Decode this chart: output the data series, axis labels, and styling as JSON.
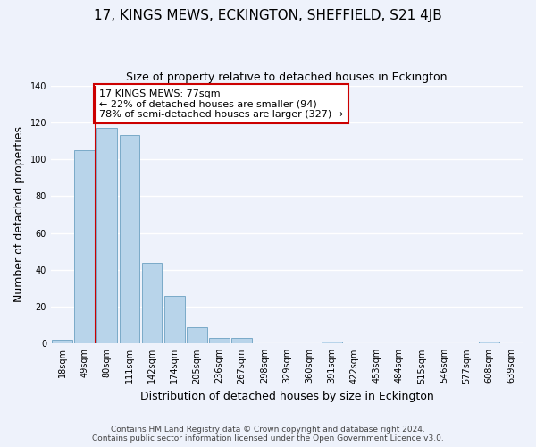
{
  "title": "17, KINGS MEWS, ECKINGTON, SHEFFIELD, S21 4JB",
  "subtitle": "Size of property relative to detached houses in Eckington",
  "xlabel": "Distribution of detached houses by size in Eckington",
  "ylabel": "Number of detached properties",
  "bar_labels": [
    "18sqm",
    "49sqm",
    "80sqm",
    "111sqm",
    "142sqm",
    "174sqm",
    "205sqm",
    "236sqm",
    "267sqm",
    "298sqm",
    "329sqm",
    "360sqm",
    "391sqm",
    "422sqm",
    "453sqm",
    "484sqm",
    "515sqm",
    "546sqm",
    "577sqm",
    "608sqm",
    "639sqm"
  ],
  "bar_values": [
    2,
    105,
    117,
    113,
    44,
    26,
    9,
    3,
    3,
    0,
    0,
    0,
    1,
    0,
    0,
    0,
    0,
    0,
    0,
    1,
    0
  ],
  "bar_color": "#b8d4ea",
  "bar_edge_color": "#7aaac8",
  "vline_color": "#cc0000",
  "annotation_text": "17 KINGS MEWS: 77sqm\n← 22% of detached houses are smaller (94)\n78% of semi-detached houses are larger (327) →",
  "annotation_box_color": "#ffffff",
  "annotation_box_edge_color": "#cc0000",
  "ylim": [
    0,
    140
  ],
  "yticks": [
    0,
    20,
    40,
    60,
    80,
    100,
    120,
    140
  ],
  "footer_line1": "Contains HM Land Registry data © Crown copyright and database right 2024.",
  "footer_line2": "Contains public sector information licensed under the Open Government Licence v3.0.",
  "bg_color": "#eef2fb",
  "grid_color": "#ffffff",
  "title_fontsize": 11,
  "subtitle_fontsize": 9,
  "axis_label_fontsize": 9,
  "tick_fontsize": 7,
  "annotation_fontsize": 8,
  "footer_fontsize": 6.5,
  "vline_x": 1.5
}
